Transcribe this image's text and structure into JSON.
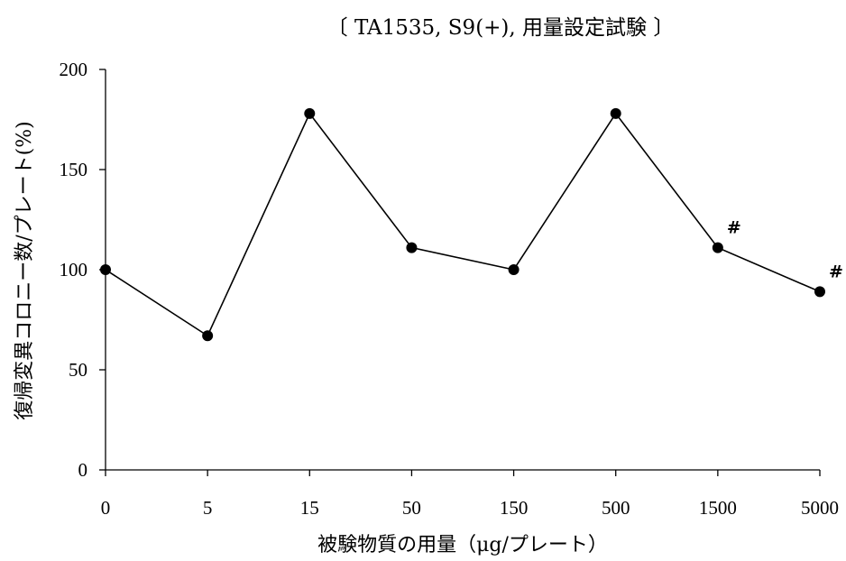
{
  "chart_data": {
    "type": "line",
    "title": "〔 TA1535, S9(+), 用量設定試験 〕",
    "xlabel": "被験物質の用量（μg/プレート）",
    "ylabel": "復帰変異コロニー数/プレート(%)",
    "categories": [
      "0",
      "5",
      "15",
      "50",
      "150",
      "500",
      "1500",
      "5000"
    ],
    "series": [
      {
        "values": [
          100,
          67,
          178,
          111,
          100,
          178,
          111,
          89
        ],
        "color": "#000000",
        "marker": "filled-circle"
      }
    ],
    "ylim": [
      0,
      200
    ],
    "yticks": [
      "0",
      "50",
      "100",
      "150",
      "200"
    ],
    "grid": false,
    "annotations": [
      {
        "category": "1500",
        "text": "#"
      },
      {
        "category": "5000",
        "text": "#"
      }
    ]
  }
}
